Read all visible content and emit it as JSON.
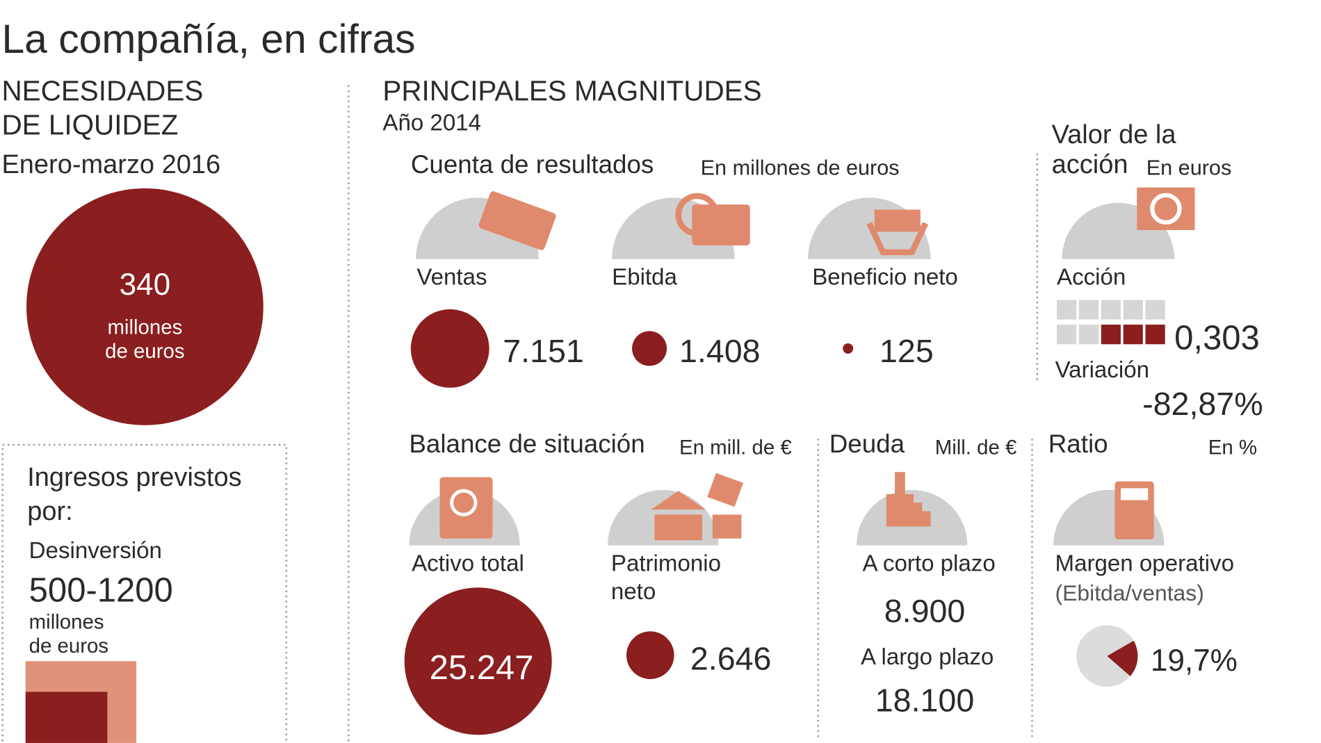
{
  "title": "La compañía, en cifras",
  "liquidity": {
    "heading": [
      "NECESIDADES",
      "DE LIQUIDEZ"
    ],
    "period": "Enero-marzo 2016",
    "value": 340,
    "unit": [
      "millones",
      "de euros"
    ],
    "income": {
      "heading": [
        "Ingresos previstos",
        "por:"
      ],
      "label": "Desinversión",
      "range": "500-1200",
      "unit": [
        "millones",
        "de euros"
      ]
    }
  },
  "main": {
    "heading": "PRINCIPALES MAGNITUDES",
    "year": "Año 2014"
  },
  "income_statement": {
    "title": "Cuenta de resultados",
    "unit": "En millones de euros",
    "items": [
      {
        "label": "Ventas",
        "value": 7151,
        "value_label": "7.151"
      },
      {
        "label": "Ebitda",
        "value": 1408,
        "value_label": "1.408"
      },
      {
        "label": "Beneficio neto",
        "value": 125,
        "value_label": "125"
      }
    ]
  },
  "share": {
    "title": [
      "Valor de la",
      "acción"
    ],
    "unit": "En euros",
    "label": "Acción",
    "value": "0,303",
    "change_label": "Variación",
    "change": "-82,87%"
  },
  "balance": {
    "title": "Balance de situación",
    "unit": "En mill. de €",
    "items": [
      {
        "label": [
          "Activo total"
        ],
        "value": 25247,
        "value_label": "25.247"
      },
      {
        "label": [
          "Patrimonio",
          "neto"
        ],
        "value": 2646,
        "value_label": "2.646"
      }
    ]
  },
  "debt": {
    "title": "Deuda",
    "unit": "Mill. de €",
    "items": [
      {
        "label": "A corto plazo",
        "value": "8.900"
      },
      {
        "label": "A largo plazo",
        "value": "18.100"
      }
    ]
  },
  "ratio": {
    "title": "Ratio",
    "unit": "En %",
    "label": [
      "Margen operativo",
      "(Ebitda/ventas)"
    ],
    "value": 19.7,
    "value_label": "19,7%"
  }
}
